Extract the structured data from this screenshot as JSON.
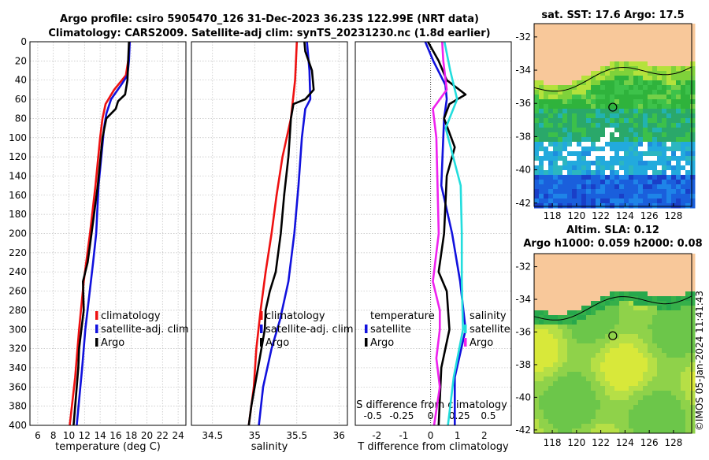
{
  "header": {
    "line1": "Argo profile: csiro 5905470_126 31-Dec-2023 36.23S 122.99E (NRT data)",
    "line2": "Climatology: CARS2009. Satellite-adj clim: synTS_20231230.nc (1.8d earlier)"
  },
  "colors": {
    "climatology": "#ee1111",
    "satellite": "#1111dd",
    "argo": "#000000",
    "sat_salinity": "#22dddd",
    "argo_salinity": "#ee22ee",
    "land": "#f8c89a"
  },
  "credit": "©IMOS 05-Jan-2024 11:41:43",
  "chart_data": [
    {
      "type": "line",
      "id": "temperature",
      "xlabel": "temperature (deg C)",
      "xlim": [
        5,
        25
      ],
      "xticks": [
        "6",
        "8",
        "10",
        "12",
        "14",
        "16",
        "18",
        "20",
        "22",
        "24"
      ],
      "ylim": [
        0,
        400
      ],
      "yticks": [
        "0",
        "20",
        "40",
        "60",
        "80",
        "100",
        "120",
        "140",
        "160",
        "180",
        "200",
        "220",
        "240",
        "260",
        "280",
        "300",
        "320",
        "340",
        "360",
        "380",
        "400"
      ],
      "legend": [
        "climatology",
        "satellite-adj. clim",
        "Argo"
      ],
      "series": [
        {
          "name": "climatology",
          "color": "red",
          "depth": [
            0,
            20,
            35,
            50,
            65,
            80,
            100,
            150,
            200,
            250,
            300,
            350,
            400
          ],
          "values": [
            17.8,
            17.6,
            17.3,
            15.8,
            14.7,
            14.3,
            14.0,
            13.4,
            12.7,
            11.9,
            11.3,
            10.8,
            10.1
          ]
        },
        {
          "name": "satellite-adj. clim",
          "color": "blue",
          "depth": [
            0,
            20,
            35,
            45,
            60,
            75,
            90,
            150,
            200,
            230,
            300,
            340,
            400
          ],
          "values": [
            17.8,
            17.7,
            17.5,
            16.7,
            15.4,
            14.8,
            14.5,
            13.8,
            13.5,
            13.1,
            12.1,
            11.7,
            11.0
          ]
        },
        {
          "name": "Argo",
          "color": "black",
          "depth": [
            0,
            20,
            40,
            55,
            62,
            70,
            80,
            100,
            150,
            200,
            230,
            250,
            280,
            300,
            320,
            340,
            370,
            400
          ],
          "values": [
            17.7,
            17.6,
            17.5,
            17.2,
            16.3,
            16.0,
            14.8,
            14.3,
            13.7,
            12.9,
            12.4,
            11.8,
            11.9,
            11.6,
            11.3,
            11.2,
            10.9,
            10.6
          ]
        }
      ]
    },
    {
      "type": "line",
      "id": "salinity",
      "xlabel": "salinity",
      "xlim": [
        34.25,
        36.1
      ],
      "xticks": [
        "34.5",
        "35",
        "35.5",
        "36"
      ],
      "ylim": [
        0,
        400
      ],
      "legend": [
        "climatology",
        "satellite-adj. clim",
        "Argo"
      ],
      "series": [
        {
          "name": "climatology",
          "color": "red",
          "depth": [
            0,
            40,
            80,
            120,
            160,
            200,
            240,
            280,
            320,
            360,
            400
          ],
          "values": [
            35.5,
            35.48,
            35.43,
            35.33,
            35.26,
            35.2,
            35.13,
            35.07,
            35.02,
            34.99,
            34.93
          ]
        },
        {
          "name": "satellite-adj. clim",
          "color": "blue",
          "depth": [
            0,
            10,
            30,
            60,
            70,
            100,
            150,
            200,
            250,
            290,
            320,
            360,
            400
          ],
          "values": [
            35.62,
            35.63,
            35.65,
            35.66,
            35.6,
            35.56,
            35.52,
            35.47,
            35.4,
            35.3,
            35.2,
            35.1,
            35.05
          ]
        },
        {
          "name": "Argo",
          "color": "black",
          "depth": [
            0,
            10,
            30,
            50,
            60,
            65,
            80,
            120,
            160,
            200,
            240,
            260,
            280,
            300,
            330,
            360,
            380,
            400
          ],
          "values": [
            35.59,
            35.6,
            35.68,
            35.7,
            35.6,
            35.46,
            35.43,
            35.4,
            35.35,
            35.31,
            35.25,
            35.18,
            35.13,
            35.12,
            35.06,
            35.0,
            34.96,
            34.93
          ]
        }
      ]
    },
    {
      "type": "line",
      "id": "difference",
      "xlabel": "T difference from climatology",
      "xlim": [
        -2.8,
        3.0
      ],
      "xticks": [
        "-2",
        "-1",
        "0",
        "1",
        "2"
      ],
      "top_axis_label": "S difference from climatology",
      "top_ticks": [
        "-0.5",
        "-0.25",
        "0",
        "0.25",
        "0.5"
      ],
      "ylim": [
        0,
        400
      ],
      "legend_temperature": [
        "temperature",
        "satellite",
        "Argo"
      ],
      "legend_salinity": [
        "salinity",
        "satellite",
        "Argo"
      ],
      "series": [
        {
          "name": "T satellite",
          "color": "blue",
          "depth": [
            0,
            20,
            45,
            60,
            80,
            150,
            200,
            250,
            300,
            350,
            400
          ],
          "values": [
            -0.2,
            0.1,
            0.55,
            0.6,
            0.5,
            0.4,
            0.8,
            1.1,
            1.3,
            0.9,
            0.9
          ]
        },
        {
          "name": "T Argo",
          "color": "black",
          "depth": [
            0,
            20,
            40,
            55,
            60,
            65,
            80,
            110,
            140,
            200,
            240,
            260,
            300,
            340,
            400
          ],
          "values": [
            -0.1,
            0.3,
            0.6,
            1.3,
            1.0,
            0.7,
            0.5,
            0.9,
            0.6,
            0.5,
            0.3,
            0.6,
            0.7,
            0.4,
            0.3
          ]
        },
        {
          "name": "S satellite",
          "color": "cyan",
          "depth": [
            0,
            30,
            60,
            90,
            150,
            200,
            250,
            300,
            350,
            400
          ],
          "values": [
            0.12,
            0.17,
            0.23,
            0.13,
            0.26,
            0.27,
            0.27,
            0.28,
            0.2,
            0.15
          ]
        },
        {
          "name": "S Argo",
          "color": "magenta",
          "depth": [
            0,
            20,
            50,
            70,
            100,
            150,
            200,
            250,
            280,
            300,
            330,
            360,
            400
          ],
          "values": [
            0.1,
            0.11,
            0.14,
            0.02,
            0.05,
            0.06,
            0.07,
            0.02,
            0.08,
            0.08,
            0.05,
            0.08,
            0.03
          ]
        }
      ]
    },
    {
      "type": "heatmap",
      "id": "sst_map",
      "title": "sat. SST: 17.6 Argo: 17.5",
      "xticks": [
        "118",
        "120",
        "122",
        "124",
        "126",
        "128"
      ],
      "yticks": [
        "-32",
        "-34",
        "-36",
        "-38",
        "-40",
        "-42"
      ],
      "xlim": [
        116.5,
        129.5
      ],
      "ylim": [
        -42.2,
        -31.2
      ],
      "marker": {
        "lon": 122.99,
        "lat": -36.23
      }
    },
    {
      "type": "heatmap",
      "id": "sla_map",
      "title_line1": "Altim. SLA: 0.12",
      "title_line2": "Argo h1000: 0.059 h2000: 0.08",
      "xticks": [
        "118",
        "120",
        "122",
        "124",
        "126",
        "128"
      ],
      "yticks": [
        "-32",
        "-34",
        "-36",
        "-38",
        "-40",
        "-42"
      ],
      "xlim": [
        116.5,
        129.5
      ],
      "ylim": [
        -42.2,
        -31.2
      ],
      "marker": {
        "lon": 122.99,
        "lat": -36.23
      }
    }
  ]
}
